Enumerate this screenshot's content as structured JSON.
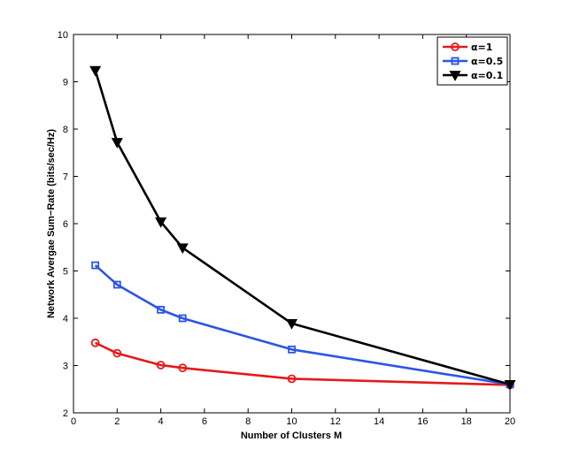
{
  "chart_data": {
    "type": "line",
    "title": "",
    "xlabel": "Number of Clusters M",
    "ylabel": "Network Avergae Sum−Rate (bits/sec/Hz)",
    "xlim": [
      0,
      20
    ],
    "ylim": [
      2,
      10
    ],
    "xticks": [
      0,
      2,
      4,
      6,
      8,
      10,
      12,
      14,
      16,
      18,
      20
    ],
    "yticks": [
      2,
      3,
      4,
      5,
      6,
      7,
      8,
      9,
      10
    ],
    "grid": false,
    "legend_position": "top-right",
    "x": [
      1,
      2,
      4,
      5,
      10,
      20
    ],
    "series": [
      {
        "name": "α=1",
        "color": "#e41a1c",
        "marker": "circle",
        "values": [
          3.48,
          3.26,
          3.01,
          2.95,
          2.72,
          2.59
        ]
      },
      {
        "name": "α=0.5",
        "color": "#2b55e6",
        "marker": "square",
        "values": [
          5.12,
          4.71,
          4.18,
          4.0,
          3.34,
          2.6
        ]
      },
      {
        "name": "α=0.1",
        "color": "#000000",
        "marker": "triangle-down",
        "values": [
          9.24,
          7.72,
          6.04,
          5.49,
          3.89,
          2.6
        ]
      }
    ]
  }
}
